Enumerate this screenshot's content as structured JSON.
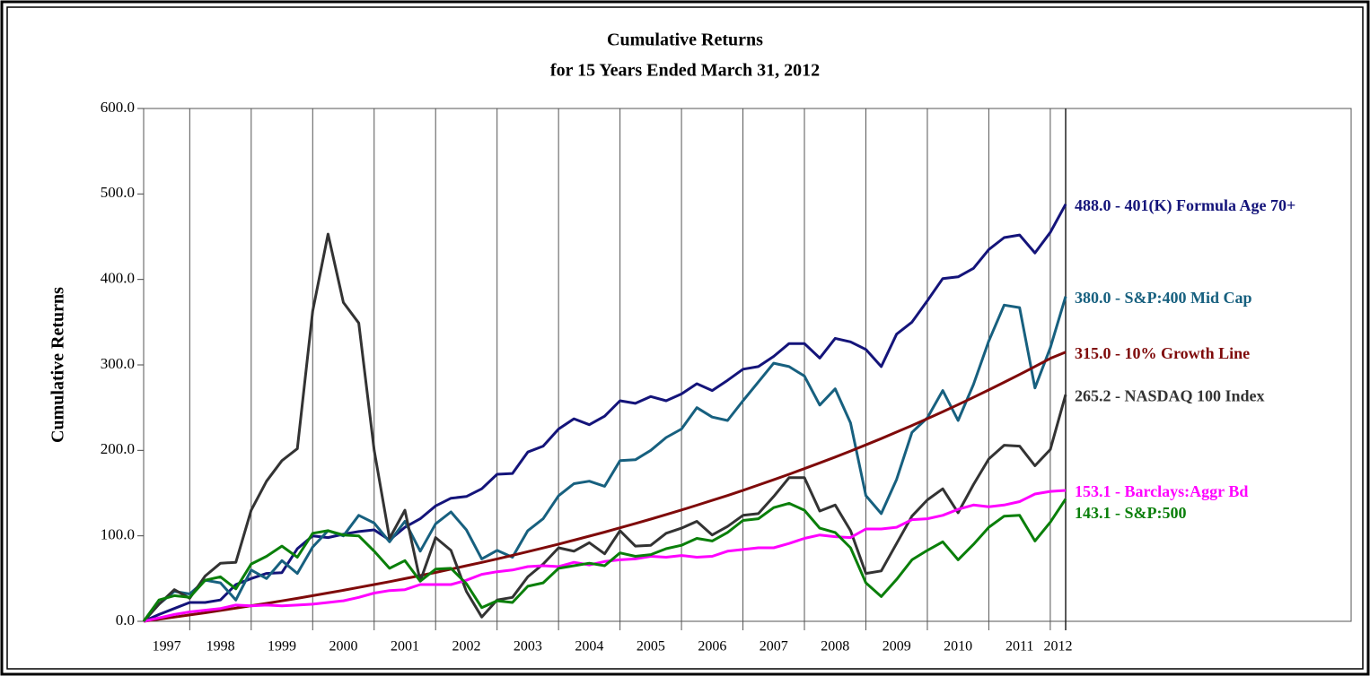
{
  "chart_data": {
    "type": "line",
    "title": "Cumulative Returns",
    "subtitle": "for 15 Years Ended March 31, 2012",
    "y_label": "Cumulative Returns",
    "x": [
      1997.25,
      1997.5,
      1997.75,
      1998,
      1998.25,
      1998.5,
      1998.75,
      1999,
      1999.25,
      1999.5,
      1999.75,
      2000,
      2000.25,
      2000.5,
      2000.75,
      2001,
      2001.25,
      2001.5,
      2001.75,
      2002,
      2002.25,
      2002.5,
      2002.75,
      2003,
      2003.25,
      2003.5,
      2003.75,
      2004,
      2004.25,
      2004.5,
      2004.75,
      2005,
      2005.25,
      2005.5,
      2005.75,
      2006,
      2006.25,
      2006.5,
      2006.75,
      2007,
      2007.25,
      2007.5,
      2007.75,
      2008,
      2008.25,
      2008.5,
      2008.75,
      2009,
      2009.25,
      2009.5,
      2009.75,
      2010,
      2010.25,
      2010.5,
      2010.75,
      2011,
      2011.25,
      2011.5,
      2011.75,
      2012,
      2012.25
    ],
    "xlim": [
      1997.25,
      2012.25
    ],
    "xticks": [
      1997,
      1998,
      1999,
      2000,
      2001,
      2002,
      2003,
      2004,
      2005,
      2006,
      2007,
      2008,
      2009,
      2010,
      2011,
      2012
    ],
    "ylim": [
      0,
      600
    ],
    "yticks": [
      {
        "value": 0,
        "label": "0.0"
      },
      {
        "value": 100,
        "label": "100.0"
      },
      {
        "value": 200,
        "label": "200.0"
      },
      {
        "value": 300,
        "label": "300.0"
      },
      {
        "value": 400,
        "label": "400.0"
      },
      {
        "value": 500,
        "label": "500.0"
      },
      {
        "value": 600,
        "label": "600.0"
      }
    ],
    "grid": "x",
    "legend": "right",
    "series": [
      {
        "name": "488.0 - 401(K) Formula Age 70+",
        "color": "#14147a",
        "values": [
          0,
          8,
          15,
          22,
          22,
          25,
          43,
          50,
          56,
          57,
          85,
          100,
          98,
          102,
          105,
          107,
          95,
          110,
          120,
          135,
          144,
          146,
          155,
          172,
          173,
          198,
          205,
          225,
          237,
          230,
          240,
          258,
          255,
          263,
          258,
          266,
          278,
          270,
          282,
          295,
          298,
          310,
          325,
          325,
          308,
          331,
          327,
          318,
          298,
          336,
          350,
          375,
          401,
          403,
          413,
          435,
          449,
          452,
          431,
          455,
          488
        ]
      },
      {
        "name": "380.0 - S&P:400 Mid Cap",
        "color": "#17607f",
        "values": [
          0,
          20,
          35,
          32,
          48,
          45,
          25,
          60,
          50,
          71,
          56,
          87,
          106,
          100,
          124,
          115,
          93,
          117,
          82,
          114,
          128,
          107,
          73,
          83,
          75,
          106,
          120,
          147,
          161,
          164,
          158,
          188,
          189,
          200,
          215,
          225,
          250,
          239,
          235,
          258,
          280,
          302,
          298,
          287,
          253,
          272,
          232,
          147,
          126,
          166,
          221,
          238,
          270,
          235,
          277,
          328,
          370,
          367,
          273,
          320,
          380
        ]
      },
      {
        "name": "315.0 - 10% Growth Line",
        "color": "#7f0a0a",
        "values": [
          0,
          2.4,
          4.9,
          7.4,
          10,
          12.7,
          15.4,
          18.2,
          21,
          23.9,
          26.9,
          30,
          33.1,
          36.3,
          39.6,
          43,
          46.4,
          49.9,
          53.5,
          57.2,
          61.1,
          65,
          68.9,
          73,
          77.2,
          81.5,
          85.8,
          90.3,
          94.9,
          99.6,
          104.4,
          109.4,
          114.4,
          119.6,
          124.9,
          130.3,
          135.8,
          141.5,
          147.2,
          153.2,
          159.4,
          165.6,
          172,
          178.6,
          185.3,
          192.2,
          199.2,
          206.4,
          213.8,
          221.4,
          229.1,
          237.1,
          245.2,
          253.5,
          262,
          270.7,
          279.7,
          288.8,
          298.1,
          307.6,
          315
        ]
      },
      {
        "name": "265.2 - NASDAQ 100 Index",
        "color": "#333333",
        "values": [
          0,
          20,
          37,
          27,
          53,
          68,
          69,
          130,
          164,
          188,
          202,
          363,
          453,
          373,
          349,
          200,
          97,
          130,
          47,
          98,
          83,
          35,
          5,
          25,
          28,
          52,
          67,
          86,
          82,
          92,
          79,
          106,
          88,
          89,
          103,
          109,
          117,
          101,
          111,
          124,
          126,
          146,
          168,
          168,
          129,
          136,
          106,
          56,
          59,
          91,
          123,
          142,
          155,
          127,
          160,
          190,
          206,
          205,
          182,
          201,
          265.2
        ]
      },
      {
        "name": "153.1 - Barclays:Aggr Bd",
        "color": "#ff00ff",
        "values": [
          0,
          4,
          8,
          11,
          13,
          15,
          19,
          18,
          19,
          18,
          19,
          20,
          22,
          24,
          28,
          33,
          36,
          37,
          43,
          43,
          43,
          48,
          55,
          58,
          60,
          64,
          65,
          64,
          69,
          66,
          70,
          72,
          73,
          76,
          75,
          77,
          75,
          76,
          82,
          84,
          86,
          86,
          91,
          97,
          101,
          99,
          98,
          108,
          108,
          110,
          119,
          120,
          124,
          131,
          136,
          134,
          136,
          140,
          149,
          152,
          153.1
        ]
      },
      {
        "name": "143.1 - S&P:500",
        "color": "#0a7f0a",
        "values": [
          0,
          25,
          30,
          28,
          48,
          52,
          38,
          67,
          76,
          88,
          75,
          103,
          106,
          101,
          100,
          82,
          62,
          71,
          47,
          61,
          62,
          44,
          16,
          24,
          22,
          41,
          45,
          62,
          65,
          68,
          65,
          80,
          76,
          78,
          85,
          89,
          97,
          94,
          104,
          118,
          120,
          133,
          138,
          130,
          109,
          104,
          86,
          45,
          29,
          49,
          72,
          83,
          93,
          72,
          90,
          110,
          123,
          124,
          94,
          116,
          143.1
        ]
      }
    ]
  }
}
